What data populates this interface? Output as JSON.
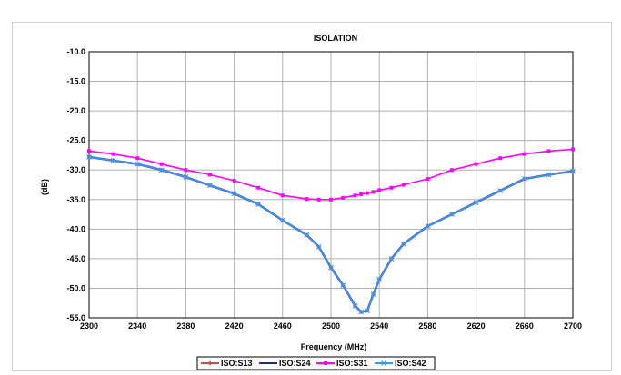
{
  "chart_data": {
    "type": "line",
    "title": "ISOLATION",
    "xlabel": "Frequency (MHz)",
    "ylabel": "(dB)",
    "xlim": [
      2300,
      2700
    ],
    "ylim": [
      -55,
      -10
    ],
    "x_ticks": [
      "2300",
      "2340",
      "2380",
      "2420",
      "2460",
      "2500",
      "2540",
      "2580",
      "2620",
      "2660",
      "2700"
    ],
    "y_ticks": [
      "-10.0",
      "-15.0",
      "-20.0",
      "-25.0",
      "-30.0",
      "-35.0",
      "-40.0",
      "-45.0",
      "-50.0",
      "-55.0"
    ],
    "grid": true,
    "legend_position": "bottom",
    "x": [
      2300,
      2320,
      2340,
      2360,
      2380,
      2400,
      2420,
      2440,
      2460,
      2480,
      2490,
      2500,
      2510,
      2520,
      2525,
      2530,
      2535,
      2540,
      2550,
      2560,
      2580,
      2600,
      2620,
      2640,
      2660,
      2680,
      2700
    ],
    "series": [
      {
        "name": "ISO:S13",
        "color": "#c0504d",
        "marker": "diamond",
        "values": [
          -27.8,
          -28.4,
          -29.0,
          -30.0,
          -31.2,
          -32.6,
          -34.0,
          -35.8,
          -38.5,
          -41.0,
          -43.0,
          -46.5,
          -49.5,
          -53.0,
          -54.0,
          -53.8,
          -51.0,
          -48.5,
          -45.0,
          -42.5,
          -39.5,
          -37.5,
          -35.5,
          -33.5,
          -31.5,
          -30.8,
          -30.2
        ]
      },
      {
        "name": "ISO:S24",
        "color": "#1f2d86",
        "marker": "none",
        "values": [
          -27.8,
          -28.4,
          -29.0,
          -30.0,
          -31.2,
          -32.6,
          -34.0,
          -35.8,
          -38.5,
          -41.0,
          -43.0,
          -46.5,
          -49.5,
          -53.0,
          -54.0,
          -53.8,
          -51.0,
          -48.5,
          -45.0,
          -42.5,
          -39.5,
          -37.5,
          -35.5,
          -33.5,
          -31.5,
          -30.8,
          -30.2
        ]
      },
      {
        "name": "ISO:S31",
        "color": "#ff00ff",
        "marker": "square",
        "values": [
          -26.8,
          -27.3,
          -28.0,
          -29.0,
          -30.0,
          -30.8,
          -31.8,
          -33.0,
          -34.3,
          -34.9,
          -35.0,
          -35.0,
          -34.7,
          -34.3,
          -34.1,
          -33.9,
          -33.7,
          -33.4,
          -33.0,
          -32.5,
          -31.5,
          -30.0,
          -29.0,
          -28.0,
          -27.3,
          -26.8,
          -26.5
        ]
      },
      {
        "name": "ISO:S42",
        "color": "#3399ff",
        "marker": "cross",
        "values": [
          -27.8,
          -28.4,
          -29.0,
          -30.0,
          -31.2,
          -32.6,
          -34.0,
          -35.8,
          -38.5,
          -41.0,
          -43.0,
          -46.5,
          -49.5,
          -53.0,
          -54.0,
          -53.8,
          -51.0,
          -48.5,
          -45.0,
          -42.5,
          -39.5,
          -37.5,
          -35.5,
          -33.5,
          -31.5,
          -30.8,
          -30.2
        ]
      }
    ]
  }
}
